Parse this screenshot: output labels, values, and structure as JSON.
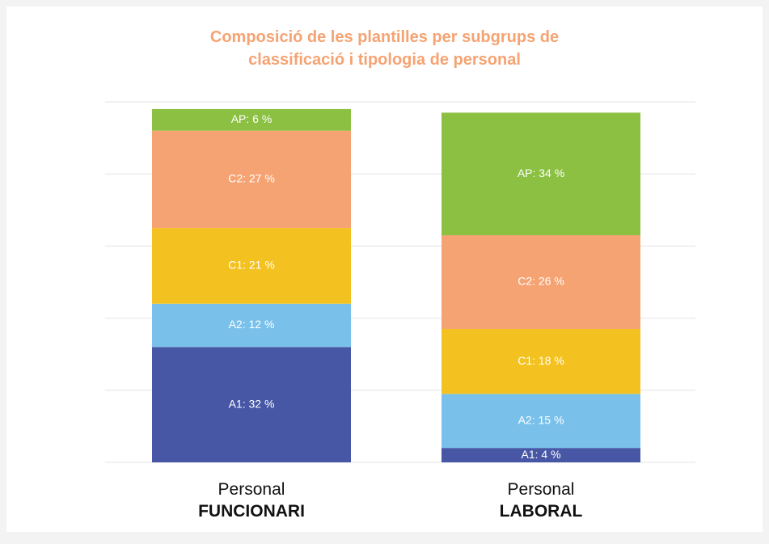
{
  "chart_data": {
    "type": "stacked_bar",
    "title": "Composició de les plantilles per subgrups de classificació i tipologia de personal",
    "categories": [
      [
        "Personal",
        "FUNCIONARI"
      ],
      [
        "Personal",
        "LABORAL"
      ]
    ],
    "series": [
      {
        "color": "#4757a5",
        "values": [
          32,
          4
        ],
        "value_labels": [
          "A1: 32 %",
          "A1: 4 %"
        ]
      },
      {
        "color": "#79c1ea",
        "values": [
          12,
          15
        ],
        "value_labels": [
          "A2: 12 %",
          "A2: 15 %"
        ]
      },
      {
        "color": "#f3c221",
        "values": [
          21,
          18
        ],
        "value_labels": [
          "C1: 21 %",
          "C1: 18 %"
        ]
      },
      {
        "color": "#f5a372",
        "values": [
          27,
          26
        ],
        "value_labels": [
          "C2: 27 %",
          "C2: 26 %"
        ]
      },
      {
        "color": "#8bc043",
        "values": [
          6,
          34
        ],
        "value_labels": [
          "AP: 6 %",
          "AP: 34 %"
        ]
      }
    ],
    "ylim": [
      0,
      100
    ],
    "yticks": [
      0,
      20,
      40,
      60,
      80,
      100
    ],
    "grid": true
  }
}
